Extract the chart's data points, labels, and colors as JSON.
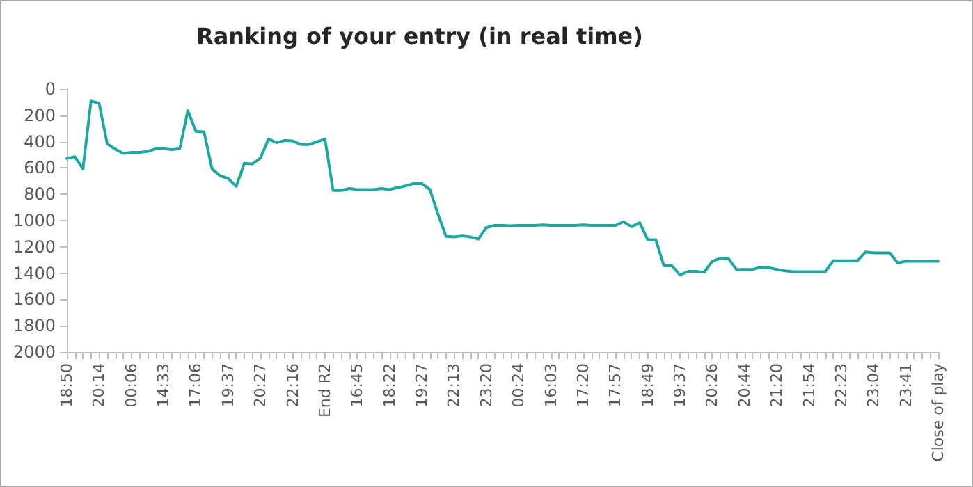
{
  "chart_data": {
    "type": "line",
    "title": "Ranking of your entry (in real time)",
    "categories": [
      "18:50",
      null,
      null,
      null,
      "20:14",
      null,
      null,
      null,
      "00:06",
      null,
      null,
      null,
      "14:33",
      null,
      null,
      null,
      "17:06",
      null,
      null,
      null,
      "19:37",
      null,
      null,
      null,
      "20:27",
      null,
      null,
      null,
      "22:16",
      null,
      null,
      null,
      "End R2",
      null,
      null,
      null,
      "16:45",
      null,
      null,
      null,
      "18:22",
      null,
      null,
      null,
      "19:27",
      null,
      null,
      null,
      "22:13",
      null,
      null,
      null,
      "23:20",
      null,
      null,
      null,
      "00:24",
      null,
      null,
      null,
      "16:03",
      null,
      null,
      null,
      "17:20",
      null,
      null,
      null,
      "17:57",
      null,
      null,
      null,
      "18:49",
      null,
      null,
      null,
      "19:37",
      null,
      null,
      null,
      "20:26",
      null,
      null,
      null,
      "20:44",
      null,
      null,
      null,
      "21:20",
      null,
      null,
      null,
      "21:54",
      null,
      null,
      null,
      "22:23",
      null,
      null,
      null,
      "23:04",
      null,
      null,
      null,
      "23:41",
      null,
      null,
      null,
      "Close of play"
    ],
    "series": [
      {
        "color": "#1aa8a0",
        "values": [
          527,
          515,
          607,
          91,
          108,
          415,
          457,
          489,
          482,
          482,
          475,
          454,
          454,
          461,
          454,
          164,
          321,
          325,
          607,
          660,
          680,
          740,
          565,
          569,
          524,
          380,
          408,
          391,
          394,
          422,
          422,
          401,
          380,
          771,
          771,
          757,
          764,
          764,
          764,
          757,
          764,
          750,
          736,
          719,
          719,
          764,
          950,
          1120,
          1124,
          1117,
          1124,
          1141,
          1054,
          1037,
          1037,
          1040,
          1037,
          1037,
          1037,
          1033,
          1037,
          1037,
          1037,
          1037,
          1033,
          1037,
          1037,
          1037,
          1037,
          1009,
          1047,
          1016,
          1145,
          1145,
          1344,
          1344,
          1414,
          1386,
          1386,
          1393,
          1309,
          1288,
          1288,
          1372,
          1372,
          1372,
          1354,
          1358,
          1372,
          1382,
          1389,
          1389,
          1389,
          1389,
          1389,
          1305,
          1305,
          1305,
          1305,
          1239,
          1246,
          1246,
          1246,
          1323,
          1309,
          1309,
          1309,
          1309,
          1309
        ]
      }
    ],
    "ylim": [
      2000,
      0
    ],
    "yticks": [
      0,
      200,
      400,
      600,
      800,
      1000,
      1200,
      1400,
      1600,
      1800,
      2000
    ],
    "grid": false,
    "marker": "none",
    "line_style": "solid"
  }
}
